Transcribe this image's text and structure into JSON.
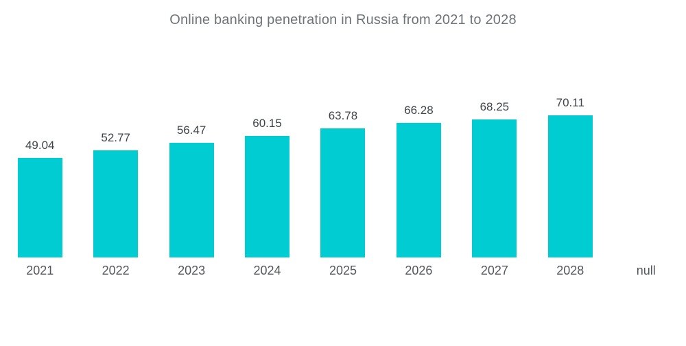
{
  "title": "Online banking penetration in Russia from 2021 to 2028",
  "chart_data": {
    "type": "bar",
    "title": "Online banking penetration in Russia from 2021 to 2028",
    "categories": [
      "2021",
      "2022",
      "2023",
      "2024",
      "2025",
      "2026",
      "2027",
      "2028",
      "null"
    ],
    "values": [
      49.04,
      52.77,
      56.47,
      60.15,
      63.78,
      66.28,
      68.25,
      70.11,
      null
    ],
    "value_labels": [
      "49.04",
      "52.77",
      "56.47",
      "60.15",
      "63.78",
      "66.28",
      "68.25",
      "70.11",
      ""
    ],
    "xlabel": "",
    "ylabel": "",
    "ylim": [
      0,
      100
    ],
    "grid": false,
    "legend_position": "none",
    "bar_color": "#00CCD2",
    "title_color": "#6e7377",
    "value_label_color": "#3f4448",
    "axis_label_color": "#54585b",
    "background_color": "#ffffff"
  }
}
